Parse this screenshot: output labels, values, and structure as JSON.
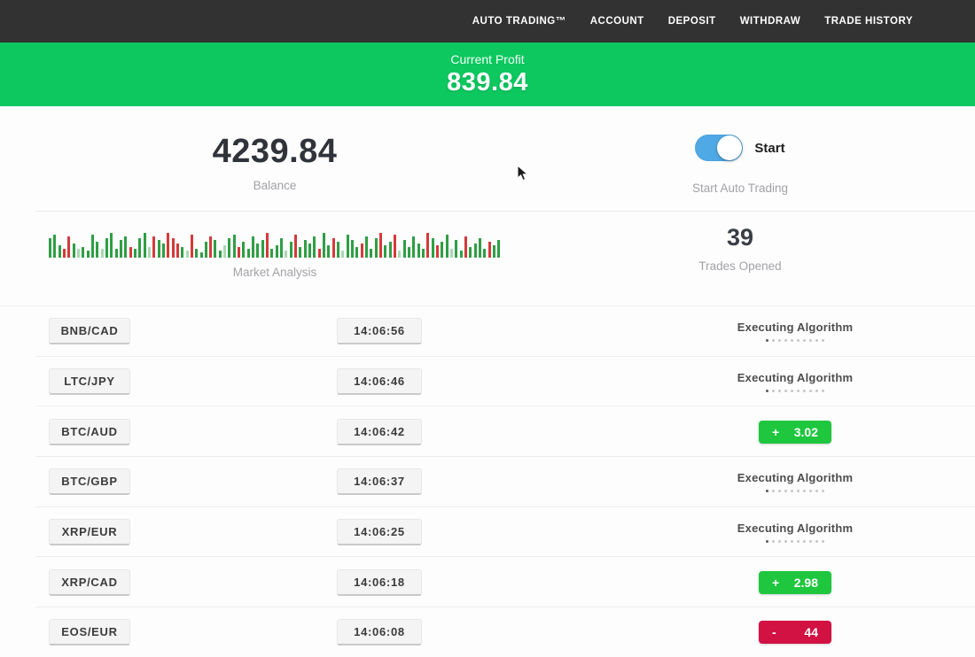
{
  "nav": {
    "items": [
      "AUTO TRADING™",
      "ACCOUNT",
      "DEPOSIT",
      "WITHDRAW",
      "TRADE HISTORY"
    ]
  },
  "profit_banner": {
    "label": "Current Profit",
    "value": "839.84"
  },
  "account": {
    "balance_value": "4239.84",
    "balance_label": "Balance",
    "toggle_label": "Start",
    "toggle_caption": "Start Auto Trading",
    "toggle_state": "on"
  },
  "market": {
    "label": "Market Analysis",
    "trades_opened_value": "39",
    "trades_opened_label": "Trades Opened",
    "bars": {
      "heights": [
        22,
        26,
        14,
        10,
        24,
        16,
        10,
        12,
        8,
        26,
        18,
        10,
        22,
        28,
        10,
        20,
        24,
        12,
        10,
        22,
        28,
        12,
        24,
        20,
        16,
        28,
        22,
        16,
        12,
        8,
        26,
        10,
        6,
        18,
        24,
        20,
        8,
        14,
        22,
        26,
        12,
        18,
        10,
        24,
        16,
        20,
        28,
        10,
        14,
        22,
        8,
        18,
        26,
        12,
        20,
        16,
        24,
        10,
        28,
        14,
        22,
        18,
        8,
        26,
        20,
        12,
        16,
        24,
        10,
        22,
        28,
        14,
        18,
        26,
        8,
        20,
        12,
        24,
        16,
        10,
        28,
        22,
        14,
        18,
        26,
        10,
        20,
        8,
        24,
        12,
        16,
        22,
        10,
        18,
        14,
        20
      ],
      "colors": [
        "g",
        "g",
        "g",
        "r",
        "r",
        "g",
        "gl",
        "g",
        "g",
        "g",
        "g",
        "gl",
        "g",
        "g",
        "g",
        "g",
        "g",
        "r",
        "g",
        "g",
        "g",
        "gl",
        "r",
        "g",
        "g",
        "r",
        "r",
        "r",
        "g",
        "gl",
        "r",
        "g",
        "g",
        "g",
        "r",
        "g",
        "g",
        "gl",
        "g",
        "g",
        "r",
        "g",
        "g",
        "g",
        "g",
        "g",
        "r",
        "g",
        "g",
        "g",
        "gl",
        "g",
        "r",
        "g",
        "g",
        "g",
        "g",
        "r",
        "g",
        "g",
        "r",
        "g",
        "gl",
        "g",
        "g",
        "g",
        "r",
        "g",
        "g",
        "g",
        "r",
        "g",
        "g",
        "r",
        "gl",
        "g",
        "g",
        "g",
        "g",
        "g",
        "r",
        "g",
        "r",
        "g",
        "g",
        "gl",
        "g",
        "g",
        "r",
        "g",
        "g",
        "g",
        "g",
        "r",
        "g",
        "g"
      ]
    }
  },
  "trades": [
    {
      "pair": "BNB/CAD",
      "time": "14:06:56",
      "status": "executing",
      "status_label": "Executing Algorithm"
    },
    {
      "pair": "LTC/JPY",
      "time": "14:06:46",
      "status": "executing",
      "status_label": "Executing Algorithm"
    },
    {
      "pair": "BTC/AUD",
      "time": "14:06:42",
      "status": "profit",
      "sign": "+",
      "amount": "3.02"
    },
    {
      "pair": "BTC/GBP",
      "time": "14:06:37",
      "status": "executing",
      "status_label": "Executing Algorithm"
    },
    {
      "pair": "XRP/EUR",
      "time": "14:06:25",
      "status": "executing",
      "status_label": "Executing Algorithm"
    },
    {
      "pair": "XRP/CAD",
      "time": "14:06:18",
      "status": "profit",
      "sign": "+",
      "amount": "2.98"
    },
    {
      "pair": "EOS/EUR",
      "time": "14:06:08",
      "status": "loss",
      "sign": "-",
      "amount": "44"
    }
  ],
  "ui": {
    "executing_dots": 10,
    "colors": {
      "nav_bg": "#323232",
      "banner_green": "#0dc75f",
      "profit_green": "#1ec73e",
      "loss_red": "#d11242",
      "toggle_blue": "#4fa9e5",
      "bar_green": "#2f9e44",
      "bar_red": "#d43a3a"
    }
  }
}
